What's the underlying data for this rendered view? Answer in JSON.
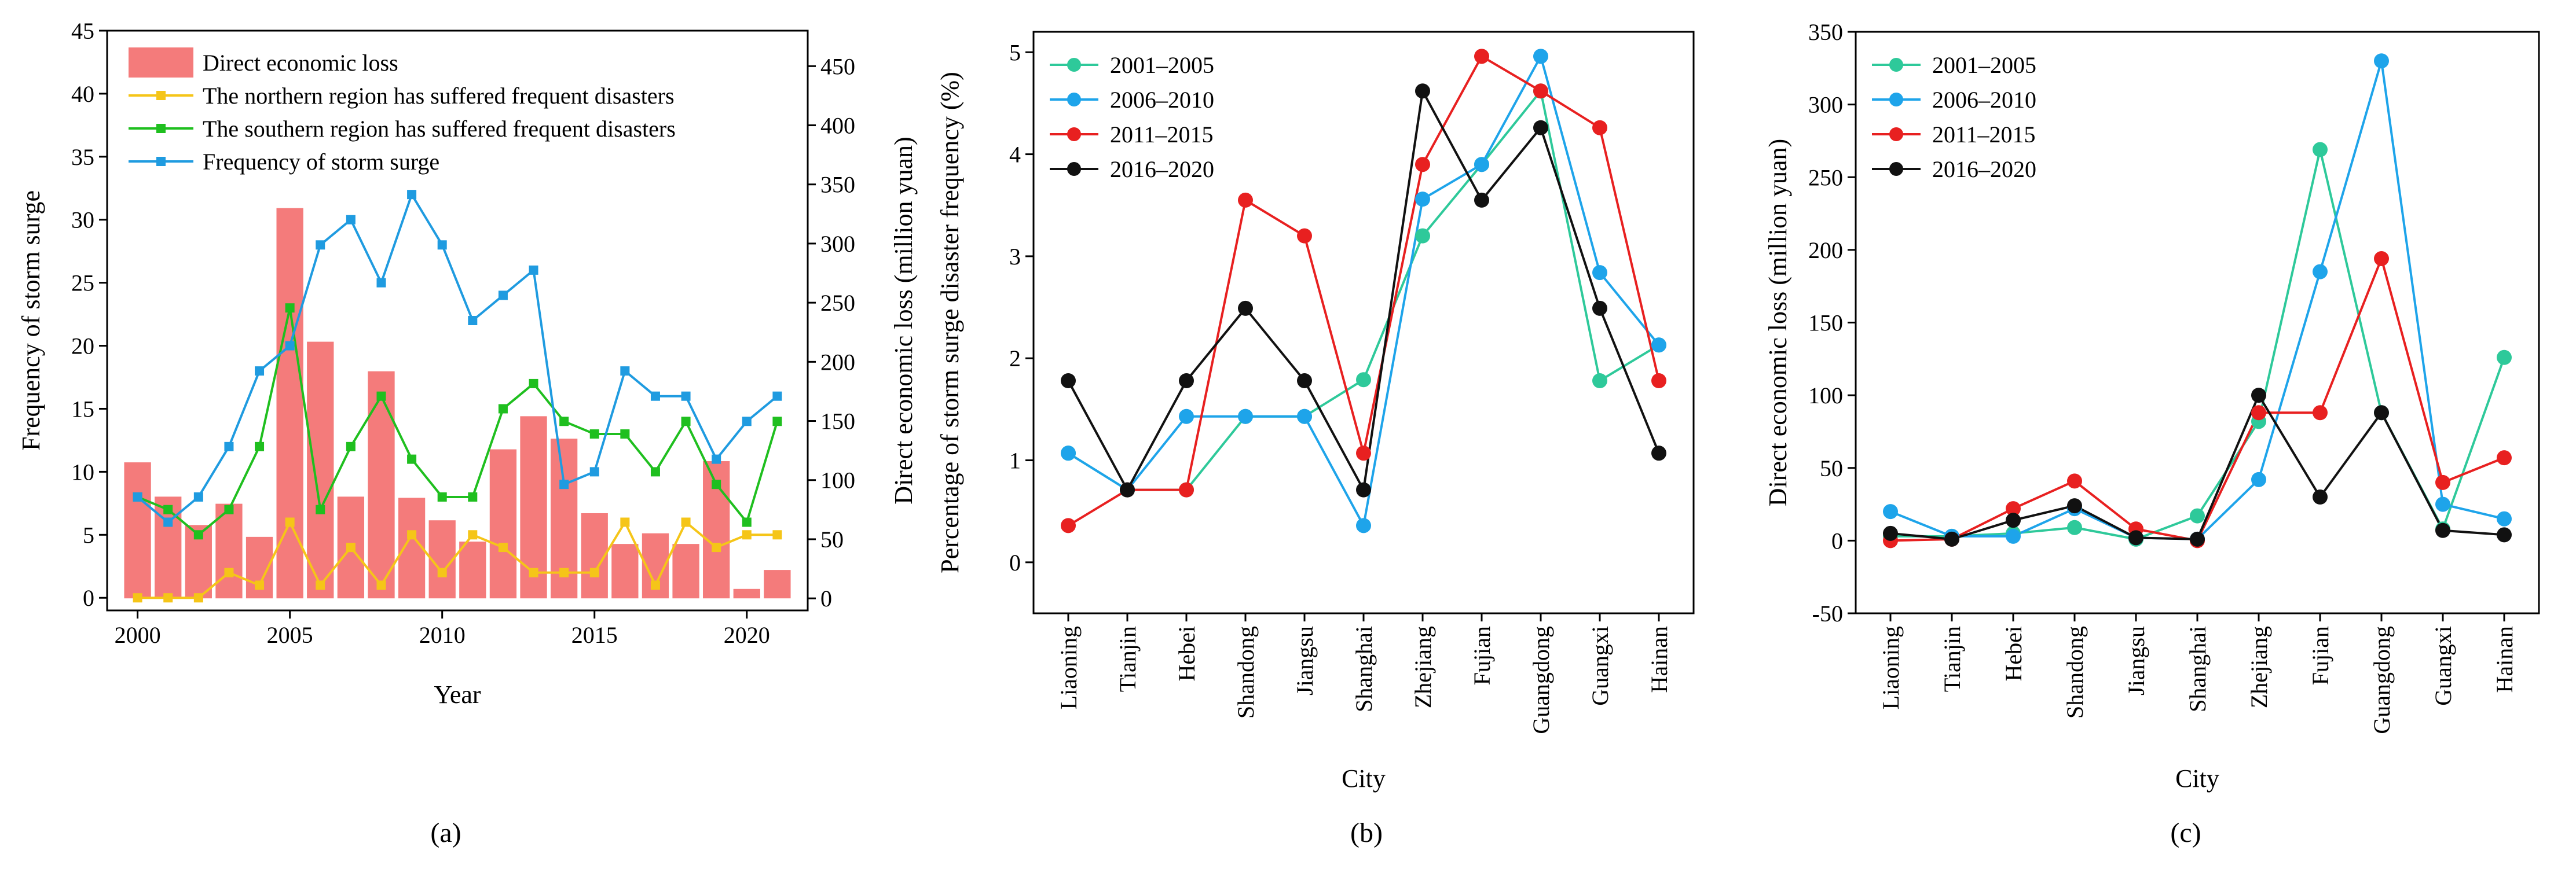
{
  "chart_data": [
    {
      "id": "a",
      "type": "bar+line",
      "caption": "(a)",
      "xlabel": "Year",
      "ylabel_left": "Frequency of storm surge",
      "ylabel_right": "Direct economic loss (million yuan)",
      "xlim": [
        1999,
        2022
      ],
      "ylim_left": [
        -1,
        45
      ],
      "ylim_right": [
        -10.2,
        480
      ],
      "xticks": [
        "2000",
        "2005",
        "2010",
        "2015",
        "2020"
      ],
      "yticks_left": [
        "0",
        "5",
        "10",
        "15",
        "20",
        "25",
        "30",
        "35",
        "40",
        "45"
      ],
      "yticks_right": [
        "0",
        "50",
        "100",
        "150",
        "200",
        "250",
        "300",
        "350",
        "400",
        "450"
      ],
      "x": [
        2000,
        2001,
        2002,
        2003,
        2004,
        2005,
        2006,
        2007,
        2008,
        2009,
        2010,
        2011,
        2012,
        2013,
        2014,
        2015,
        2016,
        2017,
        2018,
        2019,
        2020,
        2021
      ],
      "bars": {
        "name": "Direct economic loss",
        "color": "#f47b7b",
        "values": [
          115,
          86,
          62,
          80,
          52,
          330,
          217,
          86,
          192,
          85,
          66,
          48,
          126,
          154,
          135,
          72,
          46,
          55,
          46,
          116,
          8,
          24
        ]
      },
      "series": [
        {
          "name": "The northern region has suffered frequent disasters",
          "color": "#f5c518",
          "values": [
            0,
            0,
            0,
            2,
            1,
            6,
            1,
            4,
            1,
            5,
            2,
            5,
            4,
            2,
            2,
            2,
            6,
            1,
            6,
            4,
            5,
            5
          ]
        },
        {
          "name": "The southern region has suffered frequent disasters",
          "color": "#1fbf1f",
          "values": [
            8,
            7,
            5,
            7,
            12,
            23,
            7,
            12,
            16,
            11,
            8,
            8,
            15,
            17,
            14,
            13,
            13,
            10,
            14,
            9,
            6,
            14
          ]
        },
        {
          "name": "Frequency of storm surge",
          "color": "#1f9be0",
          "values": [
            8,
            6,
            8,
            12,
            18,
            20,
            28,
            30,
            25,
            32,
            28,
            22,
            24,
            26,
            9,
            10,
            18,
            16,
            16,
            11,
            14,
            16
          ]
        }
      ]
    },
    {
      "id": "b",
      "type": "line",
      "caption": "(b)",
      "xlabel": "City",
      "ylabel": "Percentage of storm surge disaster frequency (%)",
      "ylim": [
        -0.5,
        5.2
      ],
      "yticks": [
        "0",
        "1",
        "2",
        "3",
        "4",
        "5"
      ],
      "categories": [
        "Liaoning",
        "Tianjin",
        "Hebei",
        "Shandong",
        "Jiangsu",
        "Shanghai",
        "Zhejiang",
        "Fujian",
        "Guangdong",
        "Guangxi",
        "Hainan"
      ],
      "series": [
        {
          "name": "2001–2005",
          "color": "#2ec99a",
          "values": [
            1.07,
            0.71,
            0.71,
            1.43,
            1.43,
            1.79,
            3.2,
            3.9,
            4.62,
            1.78,
            2.13
          ]
        },
        {
          "name": "2006–2010",
          "color": "#1ea4ea",
          "values": [
            1.07,
            0.71,
            1.43,
            1.43,
            1.43,
            0.36,
            3.56,
            3.9,
            4.96,
            2.84,
            2.13
          ]
        },
        {
          "name": "2011–2015",
          "color": "#e82020",
          "values": [
            0.36,
            0.71,
            0.71,
            3.55,
            3.2,
            1.07,
            3.9,
            4.96,
            4.62,
            4.26,
            1.78
          ]
        },
        {
          "name": "2016–2020",
          "color": "#111111",
          "values": [
            1.78,
            0.71,
            1.78,
            2.49,
            1.78,
            0.71,
            4.62,
            3.55,
            4.26,
            2.49,
            1.07
          ]
        }
      ]
    },
    {
      "id": "c",
      "type": "line",
      "caption": "(c)",
      "xlabel": "City",
      "ylabel": "Direct economic loss (million yuan)",
      "ylim": [
        -50,
        350
      ],
      "yticks": [
        "-50",
        "0",
        "50",
        "100",
        "150",
        "200",
        "250",
        "300",
        "350"
      ],
      "categories": [
        "Liaoning",
        "Tianjin",
        "Hebei",
        "Shandong",
        "Jiangsu",
        "Shanghai",
        "Zhejiang",
        "Fujian",
        "Guangdong",
        "Guangxi",
        "Hainan"
      ],
      "series": [
        {
          "name": "2001–2005",
          "color": "#2ec99a",
          "values": [
            3,
            3,
            5,
            9,
            1,
            17,
            82,
            269,
            88,
            8,
            126
          ]
        },
        {
          "name": "2006–2010",
          "color": "#1ea4ea",
          "values": [
            20,
            3,
            3,
            22,
            2,
            1,
            42,
            185,
            330,
            25,
            15
          ]
        },
        {
          "name": "2011–2015",
          "color": "#e82020",
          "values": [
            0,
            1,
            22,
            41,
            8,
            0,
            88,
            88,
            194,
            40,
            57
          ]
        },
        {
          "name": "2016–2020",
          "color": "#111111",
          "values": [
            5,
            1,
            14,
            24,
            2,
            1,
            100,
            30,
            88,
            7,
            4
          ]
        }
      ]
    }
  ]
}
